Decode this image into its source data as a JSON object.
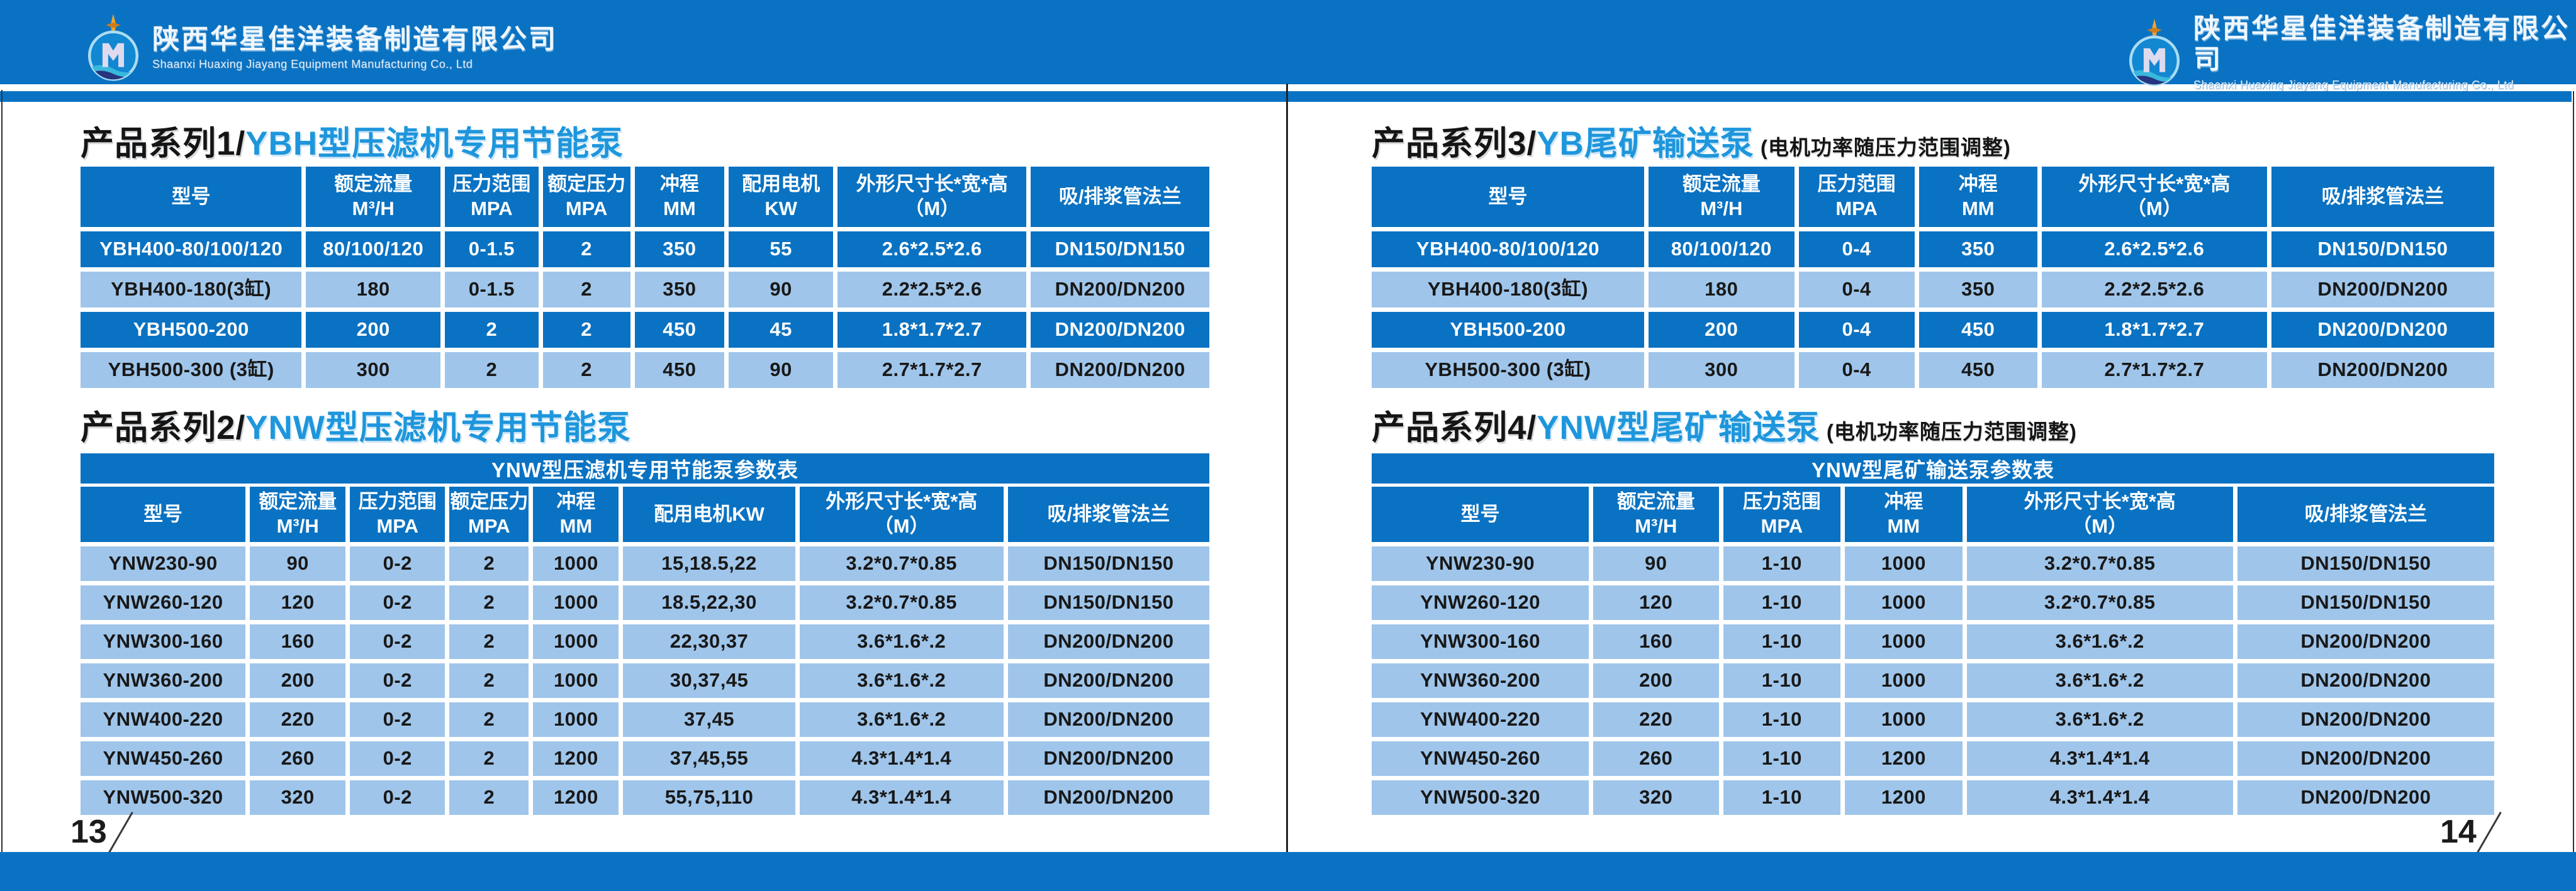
{
  "colors": {
    "primary_blue": "#0a72c2",
    "light_row_blue": "#9fc5ea",
    "title_blue": "#1e96dc",
    "text_dark": "#181818"
  },
  "brand": {
    "name_cn": "陕西华星佳洋装备制造有限公司",
    "name_en": "Shaanxi Huaxing Jiayang Equipment Manufacturing Co., Ltd"
  },
  "left_page": {
    "page_number": "13",
    "series1": {
      "prefix": "产品系列1/",
      "title": "YBH型压滤机专用节能泵"
    },
    "table1": {
      "columns": [
        "型号",
        "额定流量\nM³/H",
        "压力范围\nMPA",
        "额定压力\nMPA",
        "冲程\nMM",
        "配用电机\nKW",
        "外形尺寸长*宽*高\n（M）",
        "吸/排浆管法兰"
      ],
      "rows": [
        [
          "YBH400-80/100/120",
          "80/100/120",
          "0-1.5",
          "2",
          "350",
          "55",
          "2.6*2.5*2.6",
          "DN150/DN150"
        ],
        [
          "YBH400-180(3缸)",
          "180",
          "0-1.5",
          "2",
          "350",
          "90",
          "2.2*2.5*2.6",
          "DN200/DN200"
        ],
        [
          "YBH500-200",
          "200",
          "2",
          "2",
          "450",
          "45",
          "1.8*1.7*2.7",
          "DN200/DN200"
        ],
        [
          "YBH500-300 (3缸)",
          "300",
          "2",
          "2",
          "450",
          "90",
          "2.7*1.7*2.7",
          "DN200/DN200"
        ]
      ],
      "row_styles": [
        "dark",
        "light",
        "dark",
        "light"
      ]
    },
    "series2": {
      "prefix": "产品系列2/",
      "title": "YNW型压滤机专用节能泵"
    },
    "table2": {
      "caption": "YNW型压滤机专用节能泵参数表",
      "columns": [
        "型号",
        "额定流量\nM³/H",
        "压力范围\nMPA",
        "额定压力\nMPA",
        "冲程\nMM",
        "配用电机KW",
        "外形尺寸长*宽*高\n（M）",
        "吸/排浆管法兰"
      ],
      "rows": [
        [
          "YNW230-90",
          "90",
          "0-2",
          "2",
          "1000",
          "15,18.5,22",
          "3.2*0.7*0.85",
          "DN150/DN150"
        ],
        [
          "YNW260-120",
          "120",
          "0-2",
          "2",
          "1000",
          "18.5,22,30",
          "3.2*0.7*0.85",
          "DN150/DN150"
        ],
        [
          "YNW300-160",
          "160",
          "0-2",
          "2",
          "1000",
          "22,30,37",
          "3.6*1.6*.2",
          "DN200/DN200"
        ],
        [
          "YNW360-200",
          "200",
          "0-2",
          "2",
          "1000",
          "30,37,45",
          "3.6*1.6*.2",
          "DN200/DN200"
        ],
        [
          "YNW400-220",
          "220",
          "0-2",
          "2",
          "1000",
          "37,45",
          "3.6*1.6*.2",
          "DN200/DN200"
        ],
        [
          "YNW450-260",
          "260",
          "0-2",
          "2",
          "1200",
          "37,45,55",
          "4.3*1.4*1.4",
          "DN200/DN200"
        ],
        [
          "YNW500-320",
          "320",
          "0-2",
          "2",
          "1200",
          "55,75,110",
          "4.3*1.4*1.4",
          "DN200/DN200"
        ]
      ],
      "row_styles": [
        "light",
        "light",
        "light",
        "light",
        "light",
        "light",
        "light"
      ]
    }
  },
  "right_page": {
    "page_number": "14",
    "series3": {
      "prefix": "产品系列3/",
      "title": "YB尾矿输送泵",
      "note": "(电机功率随压力范围调整)"
    },
    "table3": {
      "columns": [
        "型号",
        "额定流量\nM³/H",
        "压力范围\nMPA",
        "冲程\nMM",
        "外形尺寸长*宽*高\n（M）",
        "吸/排浆管法兰"
      ],
      "rows": [
        [
          "YBH400-80/100/120",
          "80/100/120",
          "0-4",
          "350",
          "2.6*2.5*2.6",
          "DN150/DN150"
        ],
        [
          "YBH400-180(3缸)",
          "180",
          "0-4",
          "350",
          "2.2*2.5*2.6",
          "DN200/DN200"
        ],
        [
          "YBH500-200",
          "200",
          "0-4",
          "450",
          "1.8*1.7*2.7",
          "DN200/DN200"
        ],
        [
          "YBH500-300 (3缸)",
          "300",
          "0-4",
          "450",
          "2.7*1.7*2.7",
          "DN200/DN200"
        ]
      ],
      "row_styles": [
        "dark",
        "light",
        "dark",
        "light"
      ]
    },
    "series4": {
      "prefix": "产品系列4/",
      "title": "YNW型尾矿输送泵",
      "note": "(电机功率随压力范围调整)"
    },
    "table4": {
      "caption": "YNW型尾矿输送泵参数表",
      "columns": [
        "型号",
        "额定流量\nM³/H",
        "压力范围\nMPA",
        "冲程\nMM",
        "外形尺寸长*宽*高\n（M）",
        "吸/排浆管法兰"
      ],
      "rows": [
        [
          "YNW230-90",
          "90",
          "1-10",
          "1000",
          "3.2*0.7*0.85",
          "DN150/DN150"
        ],
        [
          "YNW260-120",
          "120",
          "1-10",
          "1000",
          "3.2*0.7*0.85",
          "DN150/DN150"
        ],
        [
          "YNW300-160",
          "160",
          "1-10",
          "1000",
          "3.6*1.6*.2",
          "DN200/DN200"
        ],
        [
          "YNW360-200",
          "200",
          "1-10",
          "1000",
          "3.6*1.6*.2",
          "DN200/DN200"
        ],
        [
          "YNW400-220",
          "220",
          "1-10",
          "1000",
          "3.6*1.6*.2",
          "DN200/DN200"
        ],
        [
          "YNW450-260",
          "260",
          "1-10",
          "1200",
          "4.3*1.4*1.4",
          "DN200/DN200"
        ],
        [
          "YNW500-320",
          "320",
          "1-10",
          "1200",
          "4.3*1.4*1.4",
          "DN200/DN200"
        ]
      ],
      "row_styles": [
        "light",
        "light",
        "light",
        "light",
        "light",
        "light",
        "light"
      ]
    }
  }
}
